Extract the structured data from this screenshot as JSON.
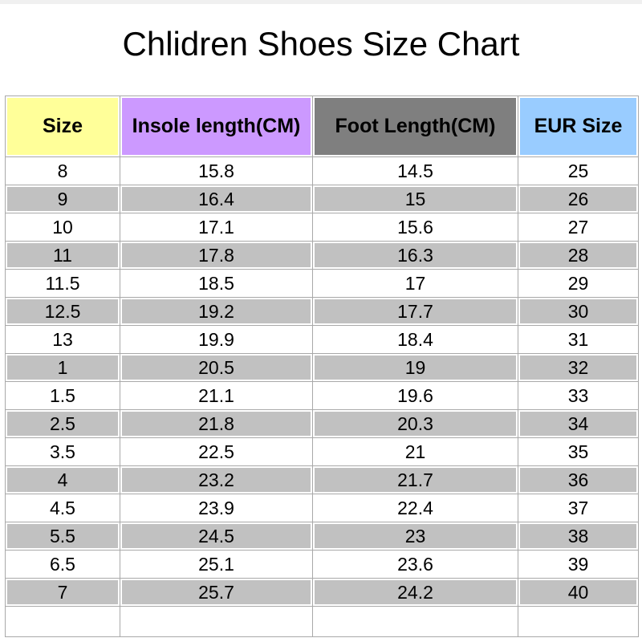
{
  "page": {
    "title": "Chlidren Shoes Size Chart",
    "background_color": "#FFFFFF",
    "top_strip_color": "#F0F0F0"
  },
  "table": {
    "border_color": "#A9A9A9",
    "row_alt_color": "#C1C1C1",
    "columns": [
      {
        "label": "Size",
        "color": "#FFFF99"
      },
      {
        "label": "Insole length(CM)",
        "color": "#CC99FF"
      },
      {
        "label": "Foot Length(CM)",
        "color": "#7F7F7F"
      },
      {
        "label": "EUR Size",
        "color": "#99CCFF"
      }
    ],
    "rows": [
      [
        "8",
        "15.8",
        "14.5",
        "25"
      ],
      [
        "9",
        "16.4",
        "15",
        "26"
      ],
      [
        "10",
        "17.1",
        "15.6",
        "27"
      ],
      [
        "11",
        "17.8",
        "16.3",
        "28"
      ],
      [
        "11.5",
        "18.5",
        "17",
        "29"
      ],
      [
        "12.5",
        "19.2",
        "17.7",
        "30"
      ],
      [
        "13",
        "19.9",
        "18.4",
        "31"
      ],
      [
        "1",
        "20.5",
        "19",
        "32"
      ],
      [
        "1.5",
        "21.1",
        "19.6",
        "33"
      ],
      [
        "2.5",
        "21.8",
        "20.3",
        "34"
      ],
      [
        "3.5",
        "22.5",
        "21",
        "35"
      ],
      [
        "4",
        "23.2",
        "21.7",
        "36"
      ],
      [
        "4.5",
        "23.9",
        "22.4",
        "37"
      ],
      [
        "5.5",
        "24.5",
        "23",
        "38"
      ],
      [
        "6.5",
        "25.1",
        "23.6",
        "39"
      ],
      [
        "7",
        "25.7",
        "24.2",
        "40"
      ],
      [
        "",
        "",
        "",
        ""
      ]
    ]
  },
  "chart_data": {
    "type": "table",
    "title": "Chlidren Shoes Size Chart",
    "columns": [
      "Size",
      "Insole length(CM)",
      "Foot Length(CM)",
      "EUR Size"
    ],
    "rows": [
      [
        "8",
        15.8,
        14.5,
        25
      ],
      [
        "9",
        16.4,
        15,
        26
      ],
      [
        "10",
        17.1,
        15.6,
        27
      ],
      [
        "11",
        17.8,
        16.3,
        28
      ],
      [
        "11.5",
        18.5,
        17,
        29
      ],
      [
        "12.5",
        19.2,
        17.7,
        30
      ],
      [
        "13",
        19.9,
        18.4,
        31
      ],
      [
        "1",
        20.5,
        19,
        32
      ],
      [
        "1.5",
        21.1,
        19.6,
        33
      ],
      [
        "2.5",
        21.8,
        20.3,
        34
      ],
      [
        "3.5",
        22.5,
        21,
        35
      ],
      [
        "4",
        23.2,
        21.7,
        36
      ],
      [
        "4.5",
        23.9,
        22.4,
        37
      ],
      [
        "5.5",
        24.5,
        23,
        38
      ],
      [
        "6.5",
        25.1,
        23.6,
        39
      ],
      [
        "7",
        25.7,
        24.2,
        40
      ]
    ],
    "layout": {
      "header_colors": [
        "#FFFF99",
        "#CC99FF",
        "#7F7F7F",
        "#99CCFF"
      ],
      "alternating_row_colors": [
        "#FFFFFF",
        "#C1C1C1"
      ],
      "trailing_empty_row": true
    }
  }
}
